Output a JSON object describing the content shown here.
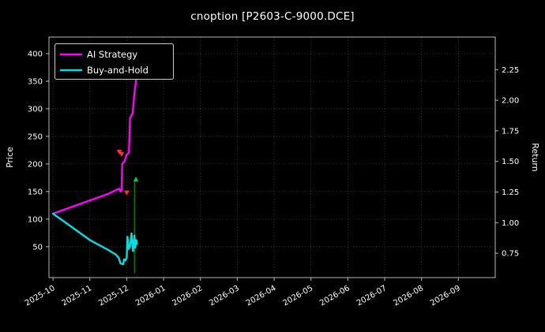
{
  "chart_data": {
    "type": "line",
    "title": "cnoption [P2603-C-9000.DCE]",
    "background": "#000000",
    "text_color": "#ffffff",
    "grid": true,
    "grid_color": "#ffffff",
    "spine_color": "#b8b8b8",
    "x_tick_labels": [
      "2025-10",
      "2025-11",
      "2025-12",
      "2026-01",
      "2026-02",
      "2026-03",
      "2026-04",
      "2026-05",
      "2026-06",
      "2026-07",
      "2026-08",
      "2026-09"
    ],
    "x_range": [
      -0.11,
      12.0
    ],
    "left_axis": {
      "label": "Price",
      "ticks": [
        50,
        100,
        150,
        200,
        250,
        300,
        350,
        400
      ],
      "range": [
        -6,
        430
      ]
    },
    "right_axis": {
      "label": "Return",
      "ticks": [
        "0.75",
        "1.00",
        "1.25",
        "1.50",
        "1.75",
        "2.00",
        "2.25"
      ],
      "range": [
        0.551,
        2.516
      ]
    },
    "legend": {
      "position": "upper-left",
      "entries": [
        {
          "label": "AI Strategy",
          "color": "#ff00ff"
        },
        {
          "label": "Buy-and-Hold",
          "color": "#00e0e0"
        }
      ]
    },
    "series": [
      {
        "name": "AI Strategy",
        "color": "#ff00ff",
        "width": 2.4,
        "axis": "left",
        "points": [
          [
            0,
            110
          ],
          [
            1.5,
            146
          ],
          [
            1.72,
            153
          ],
          [
            1.8,
            155
          ],
          [
            1.83,
            150
          ],
          [
            1.86,
            152
          ],
          [
            1.88,
            200
          ],
          [
            1.94,
            205
          ],
          [
            2.0,
            217
          ],
          [
            2.06,
            220
          ],
          [
            2.09,
            283
          ],
          [
            2.16,
            292
          ],
          [
            2.21,
            328
          ],
          [
            2.25,
            350
          ],
          [
            2.27,
            360
          ]
        ]
      },
      {
        "name": "Buy-and-Hold",
        "color": "#00e0e0",
        "width": 2.4,
        "axis": "left",
        "points": [
          [
            0,
            110
          ],
          [
            0.5,
            86
          ],
          [
            1.0,
            62
          ],
          [
            1.5,
            44
          ],
          [
            1.7,
            36
          ],
          [
            1.78,
            30
          ],
          [
            1.83,
            20
          ],
          [
            1.9,
            18
          ],
          [
            1.93,
            27
          ],
          [
            1.96,
            25
          ],
          [
            2.0,
            30
          ],
          [
            2.02,
            68
          ],
          [
            2.05,
            46
          ],
          [
            2.09,
            50
          ],
          [
            2.13,
            74
          ],
          [
            2.17,
            42
          ],
          [
            2.21,
            70
          ],
          [
            2.23,
            48
          ],
          [
            2.26,
            62
          ],
          [
            2.28,
            55
          ]
        ]
      }
    ],
    "markers": [
      {
        "type": "scatter",
        "shape": "tri-down",
        "color": "#ff3333",
        "x": 1.8,
        "y": 222
      },
      {
        "type": "scatter",
        "shape": "tri-down",
        "color": "#ff3333",
        "x": 1.86,
        "y": 218
      },
      {
        "type": "scatter",
        "shape": "tri-down",
        "color": "#ff3333",
        "x": 2.0,
        "y": 148
      },
      {
        "type": "scatter",
        "shape": "tri-up",
        "color": "#00cc44",
        "x": 2.25,
        "y": 172
      },
      {
        "type": "vline",
        "color": "#008800",
        "x": 2.21,
        "y1": 2,
        "y2": 171
      }
    ]
  }
}
